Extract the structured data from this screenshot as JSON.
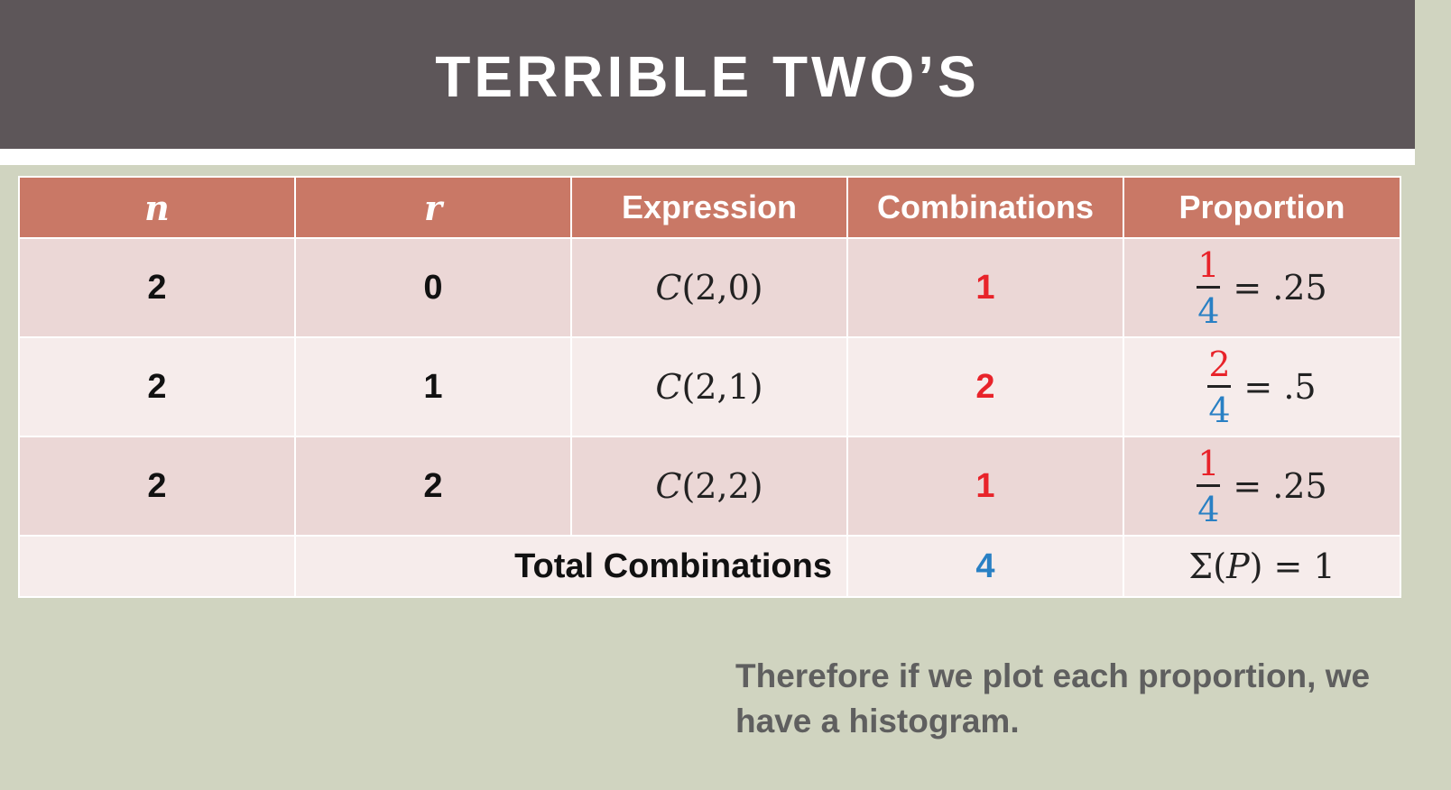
{
  "slide": {
    "title": "TERRIBLE TWO’S"
  },
  "table": {
    "headers": {
      "n": "n",
      "r": "r",
      "expression": "Expression",
      "combinations": "Combinations",
      "proportion": "Proportion"
    },
    "rows": [
      {
        "n": "2",
        "r": "0",
        "expr_c": "C",
        "expr_args": "(2,0)",
        "combinations": "1",
        "prop_num": "1",
        "prop_den": "4",
        "prop_value": "= .25"
      },
      {
        "n": "2",
        "r": "1",
        "expr_c": "C",
        "expr_args": "(2,1)",
        "combinations": "2",
        "prop_num": "2",
        "prop_den": "4",
        "prop_value": "= .5"
      },
      {
        "n": "2",
        "r": "2",
        "expr_c": "C",
        "expr_args": "(2,2)",
        "combinations": "1",
        "prop_num": "1",
        "prop_den": "4",
        "prop_value": "= .25"
      }
    ],
    "total": {
      "label": "Total Combinations",
      "combinations": "4",
      "sigma_prefix": "Σ(",
      "sigma_var": "P",
      "sigma_suffix": ") = 1"
    }
  },
  "note": {
    "text": "Therefore if we plot  each proportion, we\nhave a histogram."
  },
  "colors": {
    "title_bar": "#5d5659",
    "header": "#c97866",
    "row_dark": "#ebd7d6",
    "row_light": "#f6eceb",
    "red": "#e8232a",
    "blue": "#2980c4",
    "background": "#d0d4c0"
  }
}
